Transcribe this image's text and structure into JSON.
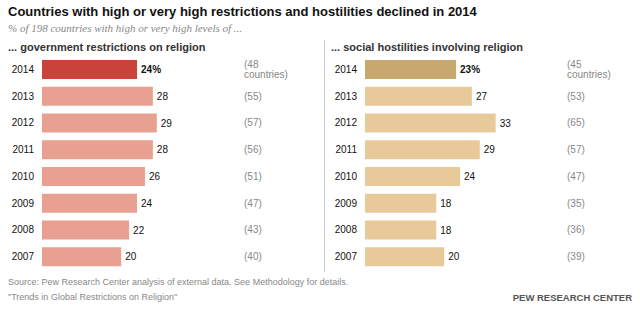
{
  "title": "Countries with high or very high restrictions and hostilities declined in 2014",
  "subtitle": "% of 198 countries with high or very high levels of ...",
  "annotations": [
    "Source: Pew Research Center analysis of external data. See Methodology for details.",
    "\"Trends in Global Restrictions on Religion\"",
    "PEW RESEARCH CENTER"
  ],
  "chart_data": [
    {
      "type": "bar",
      "orientation": "horizontal",
      "title": "... government restrictions on religion",
      "categories": [
        "2014",
        "2013",
        "2012",
        "2011",
        "2010",
        "2009",
        "2008",
        "2007"
      ],
      "values": [
        24,
        28,
        29,
        28,
        26,
        24,
        22,
        20
      ],
      "value_labels": [
        "24%",
        "28",
        "29",
        "28",
        "26",
        "24",
        "22",
        "20"
      ],
      "data_labels": true,
      "counts": [
        48,
        55,
        57,
        56,
        51,
        47,
        43,
        40
      ],
      "count_labels": [
        "(48 countries)",
        "(55)",
        "(57)",
        "(56)",
        "(51)",
        "(47)",
        "(43)",
        "(40)"
      ],
      "colors": [
        "#c9433a",
        "#e8a090",
        "#e8a090",
        "#e8a090",
        "#e8a090",
        "#e8a090",
        "#e8a090",
        "#e8a090"
      ],
      "xlim": [
        0,
        49
      ],
      "tick_labels": false,
      "grid": false
    },
    {
      "type": "bar",
      "orientation": "horizontal",
      "title": "... social hostilities involving religion",
      "categories": [
        "2014",
        "2013",
        "2012",
        "2011",
        "2010",
        "2009",
        "2008",
        "2007"
      ],
      "values": [
        23,
        27,
        33,
        29,
        24,
        18,
        18,
        20
      ],
      "value_labels": [
        "23%",
        "27",
        "33",
        "29",
        "24",
        "18",
        "18",
        "20"
      ],
      "data_labels": true,
      "counts": [
        45,
        53,
        65,
        57,
        47,
        35,
        36,
        39
      ],
      "count_labels": [
        "(45 countries)",
        "(53)",
        "(65)",
        "(57)",
        "(47)",
        "(35)",
        "(36)",
        "(39)"
      ],
      "colors": [
        "#c8a86e",
        "#e8c99a",
        "#e8c99a",
        "#e8c99a",
        "#e8c99a",
        "#e8c99a",
        "#e8c99a",
        "#e8c99a"
      ],
      "xlim": [
        0,
        49
      ],
      "tick_labels": false,
      "grid": false
    }
  ]
}
